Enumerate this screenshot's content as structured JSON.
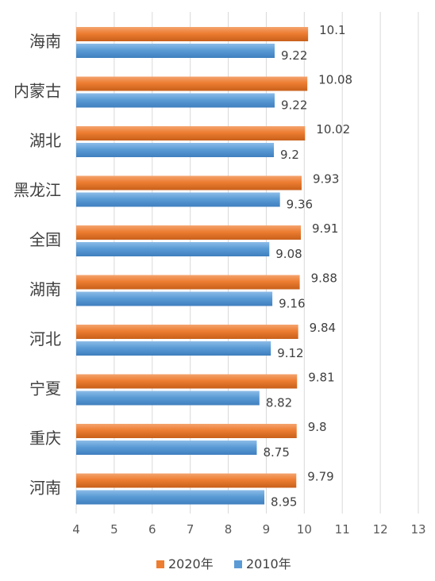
{
  "colors": {
    "series_2020": "#ED7D31",
    "series_2010": "#5B9BD5",
    "grid": "#D9D9D9",
    "text": "#404040"
  },
  "chart_data": {
    "type": "bar",
    "orientation": "horizontal",
    "categories": [
      "海南",
      "内蒙古",
      "湖北",
      "黑龙江",
      "全国",
      "湖南",
      "河北",
      "宁夏",
      "重庆",
      "河南"
    ],
    "series": [
      {
        "name": "2020年",
        "values": [
          10.1,
          10.08,
          10.02,
          9.93,
          9.91,
          9.88,
          9.84,
          9.81,
          9.8,
          9.79
        ]
      },
      {
        "name": "2010年",
        "values": [
          9.22,
          9.22,
          9.2,
          9.36,
          9.08,
          9.16,
          9.12,
          8.82,
          8.75,
          8.95
        ]
      }
    ],
    "xlim": [
      4,
      13
    ],
    "xticks": [
      4,
      5,
      6,
      7,
      8,
      9,
      10,
      11,
      12,
      13
    ],
    "grid": "vertical",
    "legend": "bottom",
    "title": "",
    "xlabel": "",
    "ylabel": ""
  }
}
